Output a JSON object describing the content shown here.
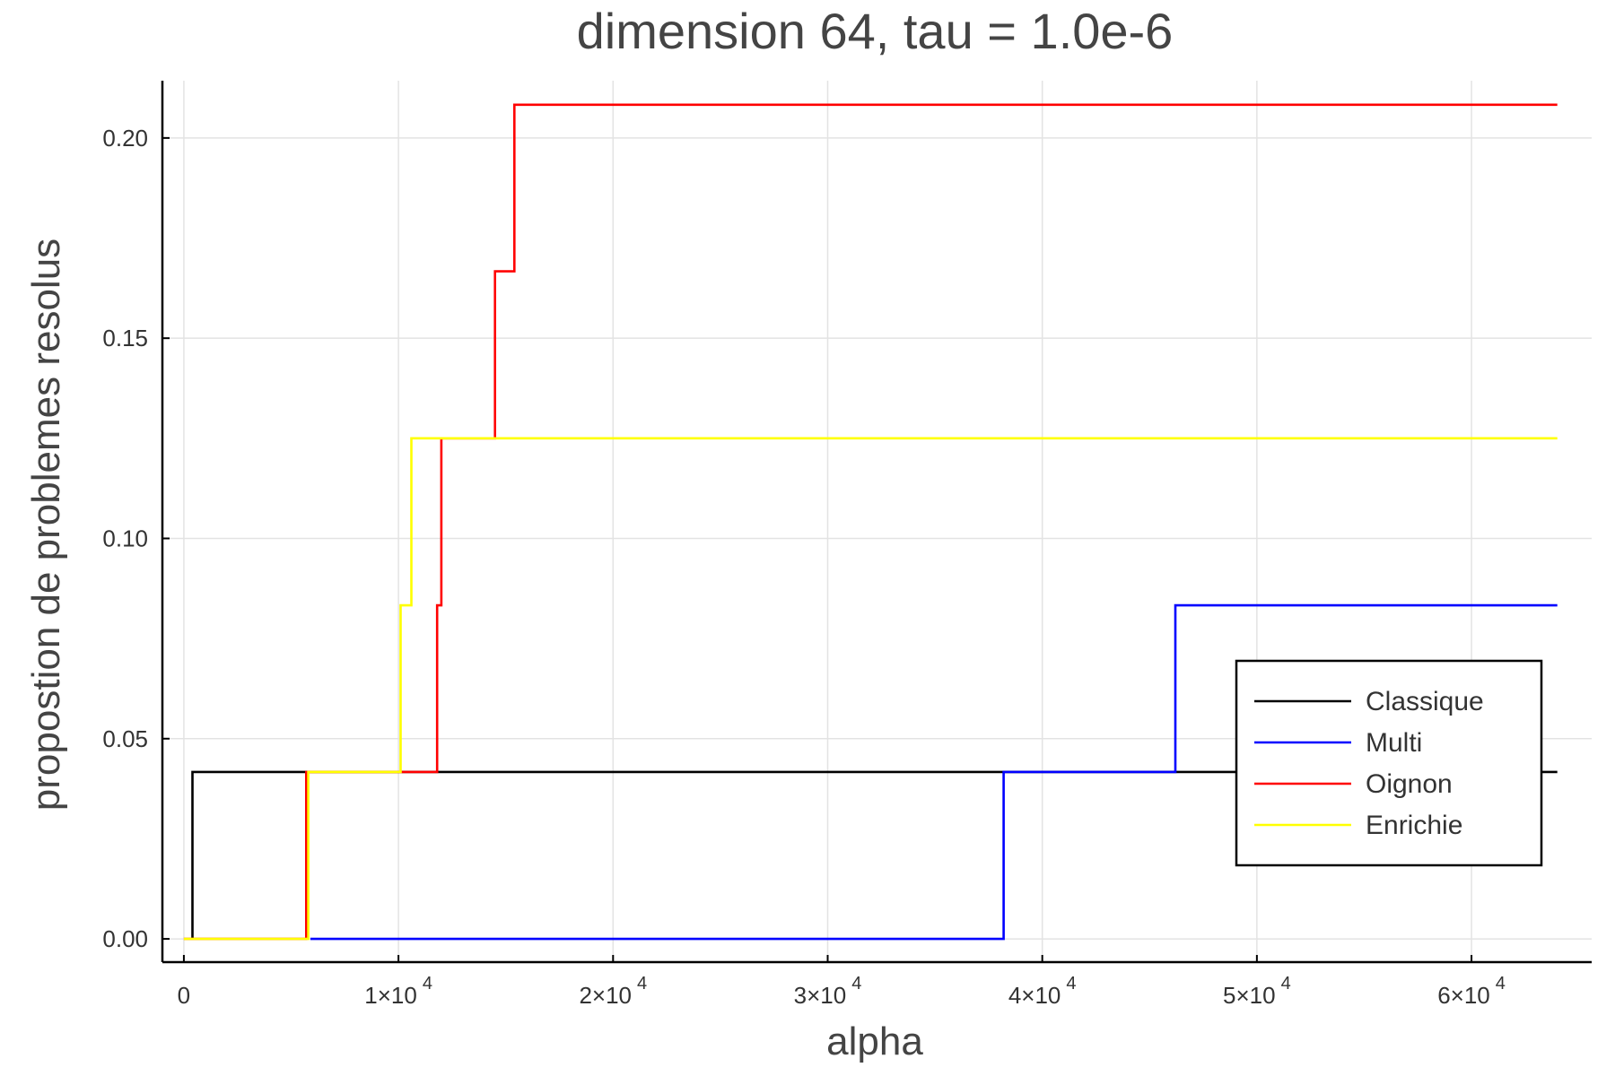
{
  "chart_data": {
    "type": "line",
    "title": "dimension 64, tau = 1.0e-6",
    "xlabel": "alpha",
    "ylabel": "propostion de problemes resolus",
    "xlim": [
      -1000,
      65600
    ],
    "ylim": [
      -0.0058,
      0.2143
    ],
    "x_ticks": [
      {
        "value": 0,
        "base": "0",
        "exp": ""
      },
      {
        "value": 10000,
        "base": "1×10",
        "exp": "4"
      },
      {
        "value": 20000,
        "base": "2×10",
        "exp": "4"
      },
      {
        "value": 30000,
        "base": "3×10",
        "exp": "4"
      },
      {
        "value": 40000,
        "base": "4×10",
        "exp": "4"
      },
      {
        "value": 50000,
        "base": "5×10",
        "exp": "4"
      },
      {
        "value": 60000,
        "base": "6×10",
        "exp": "4"
      }
    ],
    "y_ticks": [
      {
        "value": 0.0,
        "label": "0.00"
      },
      {
        "value": 0.05,
        "label": "0.05"
      },
      {
        "value": 0.1,
        "label": "0.10"
      },
      {
        "value": 0.15,
        "label": "0.15"
      },
      {
        "value": 0.2,
        "label": "0.20"
      }
    ],
    "grid": true,
    "legend_position": "bottom-right",
    "step": "post",
    "series": [
      {
        "name": "Classique",
        "color": "#000000",
        "x": [
          400,
          400,
          64000
        ],
        "y": [
          0.0,
          0.0417,
          0.0417
        ]
      },
      {
        "name": "Multi",
        "color": "#0000ff",
        "x": [
          5900,
          38200,
          38200,
          46200,
          46200,
          64000
        ],
        "y": [
          0.0,
          0.0,
          0.0417,
          0.0417,
          0.0833,
          0.0833
        ]
      },
      {
        "name": "Oignon",
        "color": "#ff0000",
        "x": [
          0,
          5700,
          5700,
          11800,
          11800,
          12000,
          12000,
          14500,
          14500,
          15400,
          15400,
          64000
        ],
        "y": [
          0.0,
          0.0,
          0.0417,
          0.0417,
          0.0833,
          0.0833,
          0.125,
          0.125,
          0.1667,
          0.1667,
          0.2083,
          0.2083
        ]
      },
      {
        "name": "Enrichie",
        "color": "#ffff00",
        "x": [
          0,
          5800,
          5800,
          10100,
          10100,
          10600,
          10600,
          64000
        ],
        "y": [
          0.0,
          0.0,
          0.0417,
          0.0417,
          0.0833,
          0.0833,
          0.125,
          0.125
        ]
      }
    ]
  }
}
